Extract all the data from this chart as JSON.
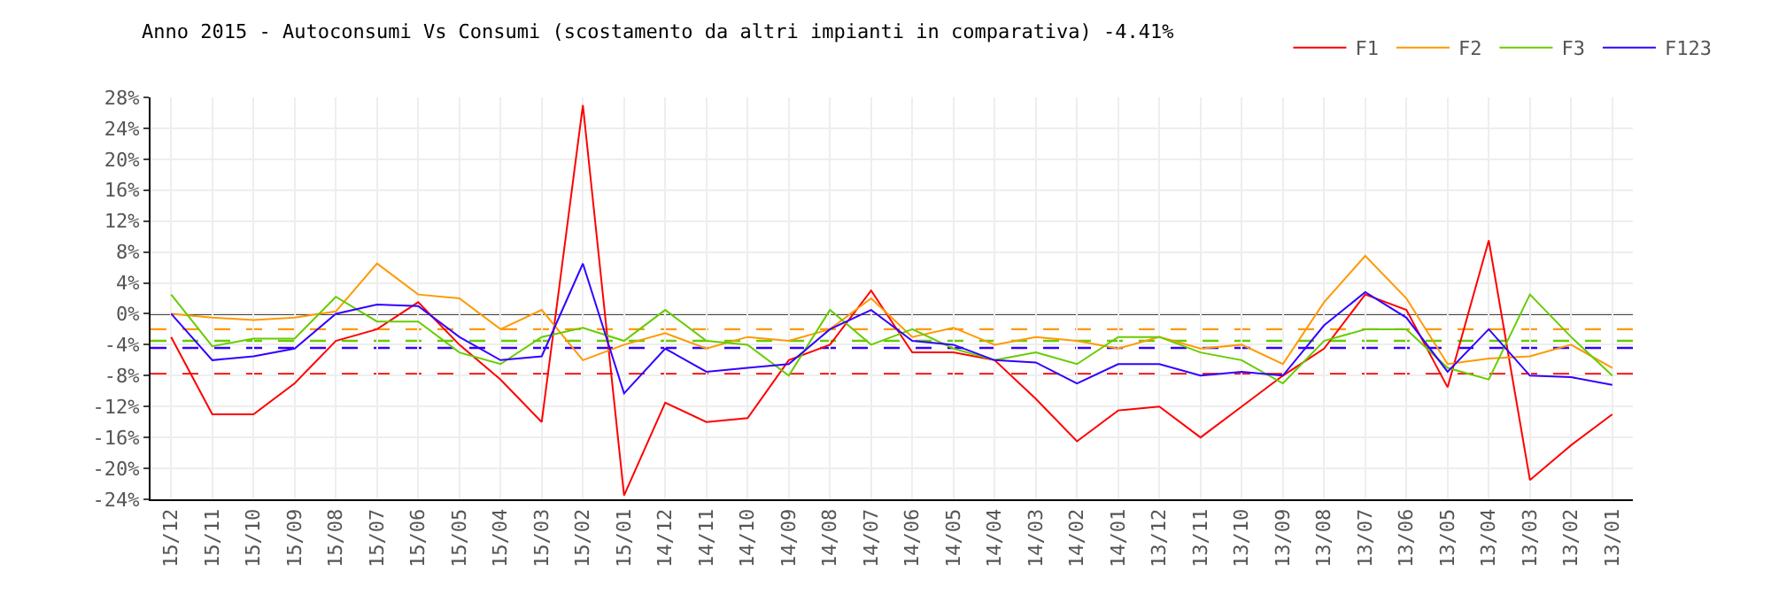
{
  "chart_data": {
    "type": "line",
    "title": "Anno 2015 - Autoconsumi Vs Consumi (scostamento da altri impianti in comparativa) -4.41%",
    "categories": [
      "15/12",
      "15/11",
      "15/10",
      "15/09",
      "15/08",
      "15/07",
      "15/06",
      "15/05",
      "15/04",
      "15/03",
      "15/02",
      "15/01",
      "14/12",
      "14/11",
      "14/10",
      "14/09",
      "14/08",
      "14/07",
      "14/06",
      "14/05",
      "14/04",
      "14/03",
      "14/02",
      "14/01",
      "13/12",
      "13/11",
      "13/10",
      "13/09",
      "13/08",
      "13/07",
      "13/06",
      "13/05",
      "13/04",
      "13/03",
      "13/02",
      "13/01"
    ],
    "series": [
      {
        "name": "F1",
        "color": "#ff0000",
        "values": [
          -3,
          -13,
          -13,
          -9,
          -3.5,
          -2,
          1.5,
          -4,
          -8.5,
          -14,
          27,
          -23.5,
          -11.5,
          -14,
          -13.5,
          -6,
          -4,
          3,
          -5,
          -5,
          -6,
          -11,
          -16.5,
          -12.5,
          -12,
          -16,
          -12,
          -8,
          -4.5,
          2.5,
          0.5,
          -9.5,
          9.5,
          -21.5,
          -17,
          -13
        ]
      },
      {
        "name": "F2",
        "color": "#ff9900",
        "values": [
          0,
          -0.5,
          -0.8,
          -0.5,
          0.3,
          6.5,
          2.5,
          2,
          -2,
          0.5,
          -6,
          -4,
          -2.5,
          -4.5,
          -3,
          -3.5,
          -2,
          2,
          -3,
          -1.8,
          -4,
          -3,
          -3.5,
          -4.5,
          -3,
          -4.5,
          -4,
          -6.5,
          1.5,
          7.5,
          2,
          -6.5,
          -5.8,
          -5.5,
          -4,
          -7
        ]
      },
      {
        "name": "F3",
        "color": "#66cc00",
        "values": [
          2.5,
          -4.2,
          -3.2,
          -3.2,
          2.2,
          -1,
          -1,
          -5,
          -6.5,
          -3,
          -1.8,
          -3.5,
          0.5,
          -3.5,
          -4,
          -8,
          0.5,
          -4,
          -2,
          -4.5,
          -6,
          -5,
          -6.5,
          -3,
          -3,
          -5,
          -6,
          -9,
          -3.5,
          -2,
          -2,
          -7,
          -8.5,
          2.5,
          -3,
          -8
        ]
      },
      {
        "name": "F123",
        "color": "#3300ff",
        "values": [
          0,
          -6,
          -5.5,
          -4.5,
          0,
          1.2,
          1,
          -3,
          -6,
          -5.5,
          6.5,
          -10.3,
          -4.5,
          -7.5,
          -7,
          -6.5,
          -2,
          0.5,
          -3.5,
          -4,
          -6,
          -6.3,
          -9,
          -6.5,
          -6.5,
          -8,
          -7.5,
          -8,
          -1.5,
          2.8,
          -0.5,
          -7.5,
          -2,
          -8,
          -8.2,
          -9.2
        ]
      }
    ],
    "ylim": [
      -24,
      28
    ],
    "yticks": [
      {
        "value": -24,
        "label": "-24%"
      },
      {
        "value": -20,
        "label": "-20%"
      },
      {
        "value": -16,
        "label": "-16%"
      },
      {
        "value": -12,
        "label": "-12%"
      },
      {
        "value": -8,
        "label": "-8%"
      },
      {
        "value": -4,
        "label": "-4%"
      },
      {
        "value": 0,
        "label": "0%"
      },
      {
        "value": 4,
        "label": "4%"
      },
      {
        "value": 8,
        "label": "8%"
      },
      {
        "value": 12,
        "label": "12%"
      },
      {
        "value": 16,
        "label": "16%"
      },
      {
        "value": 20,
        "label": "20%"
      },
      {
        "value": 24,
        "label": "24%"
      },
      {
        "value": 28,
        "label": "28%"
      }
    ],
    "ref_lines": [
      {
        "axis": "y",
        "value": 0,
        "color": "#000000",
        "line_style": "solid"
      },
      {
        "axis": "y",
        "value": -2,
        "color": "#ff9900",
        "line_style": "dashed"
      },
      {
        "axis": "y",
        "value": -3.5,
        "color": "#66cc00",
        "line_style": "dashed"
      },
      {
        "axis": "y",
        "value": -4.41,
        "color": "#3300ff",
        "line_style": "dashed"
      },
      {
        "axis": "y",
        "value": -7.8,
        "color": "#ff0000",
        "line_style": "dashed"
      }
    ],
    "grid": true,
    "legend": "top right",
    "marker": "none",
    "line_style": "solid"
  }
}
